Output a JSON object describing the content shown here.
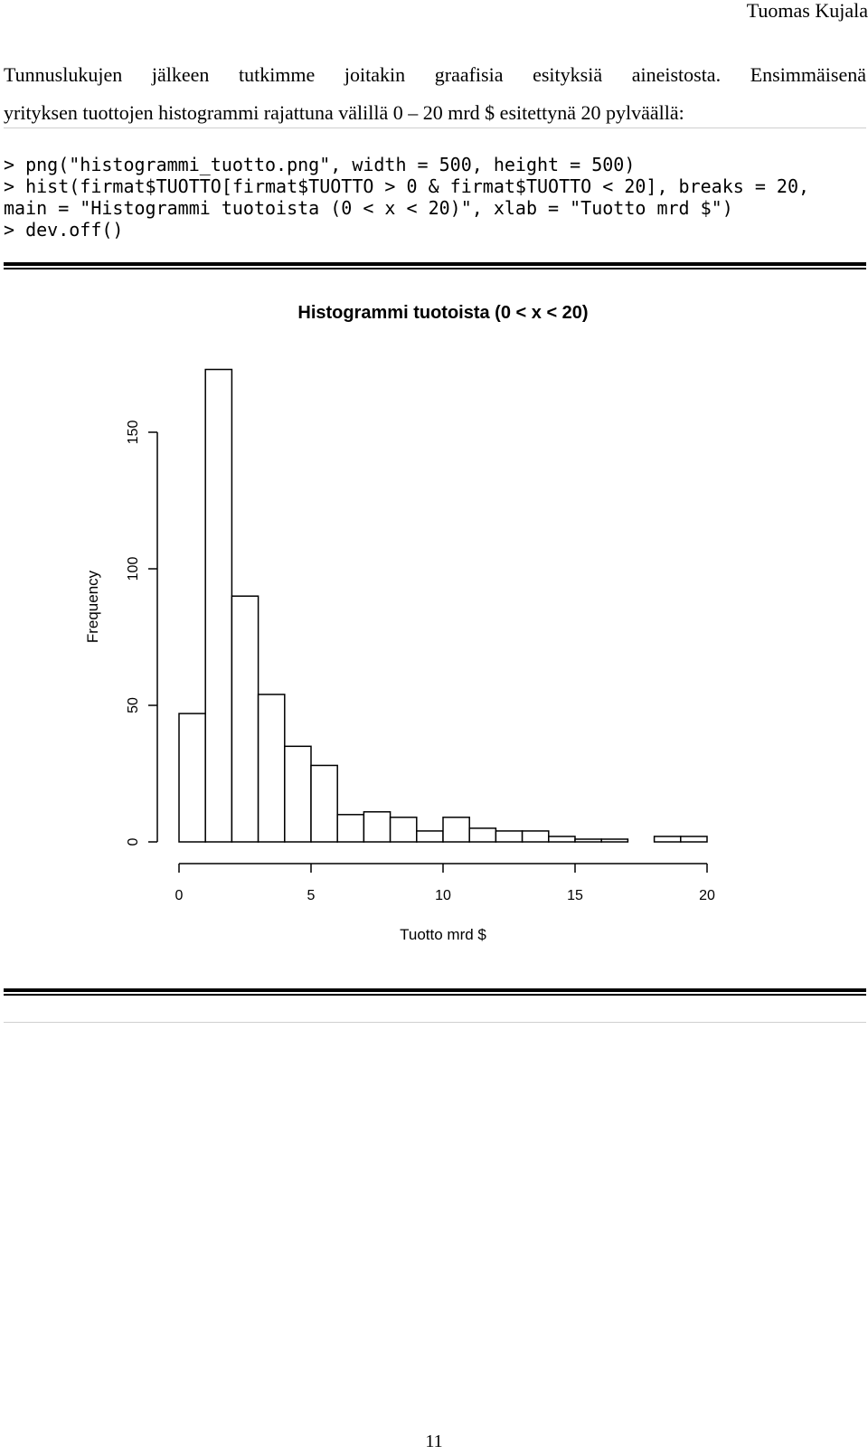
{
  "header": {
    "author": "Tuomas Kujala"
  },
  "body": {
    "paragraph_line1": "Tunnuslukujen jälkeen tutkimme joitakin graafisia esityksiä aineistosta. Ensimmäisenä",
    "paragraph_line2": "yrityksen tuottojen histogrammi rajattuna välillä 0 – 20 mrd $ esitettynä 20 pylväällä:",
    "code_lines": [
      "> png(\"histogrammi_tuotto.png\", width = 500, height = 500)",
      "> hist(firmat$TUOTTO[firmat$TUOTTO > 0 & firmat$TUOTTO < 20], breaks = 20,",
      "main = \"Histogrammi tuotoista (0 < x < 20)\", xlab = \"Tuotto mrd $\")",
      "> dev.off()"
    ]
  },
  "footer": {
    "page_number": "11"
  },
  "chart_data": {
    "type": "bar",
    "title": "Histogrammi tuotoista (0 < x < 20)",
    "xlabel": "Tuotto mrd $",
    "ylabel": "Frequency",
    "bin_edges": [
      0,
      1,
      2,
      3,
      4,
      5,
      6,
      7,
      8,
      9,
      10,
      11,
      12,
      13,
      14,
      15,
      16,
      17,
      18,
      19,
      20
    ],
    "values": [
      47,
      173,
      90,
      54,
      35,
      28,
      10,
      11,
      9,
      4,
      9,
      5,
      4,
      4,
      2,
      1,
      1,
      0,
      2,
      2
    ],
    "xlim": [
      0,
      20
    ],
    "ylim": [
      0,
      175
    ],
    "x_ticks": [
      "0",
      "5",
      "10",
      "15",
      "20"
    ],
    "y_ticks": [
      "0",
      "50",
      "100",
      "150"
    ],
    "grid": false
  }
}
